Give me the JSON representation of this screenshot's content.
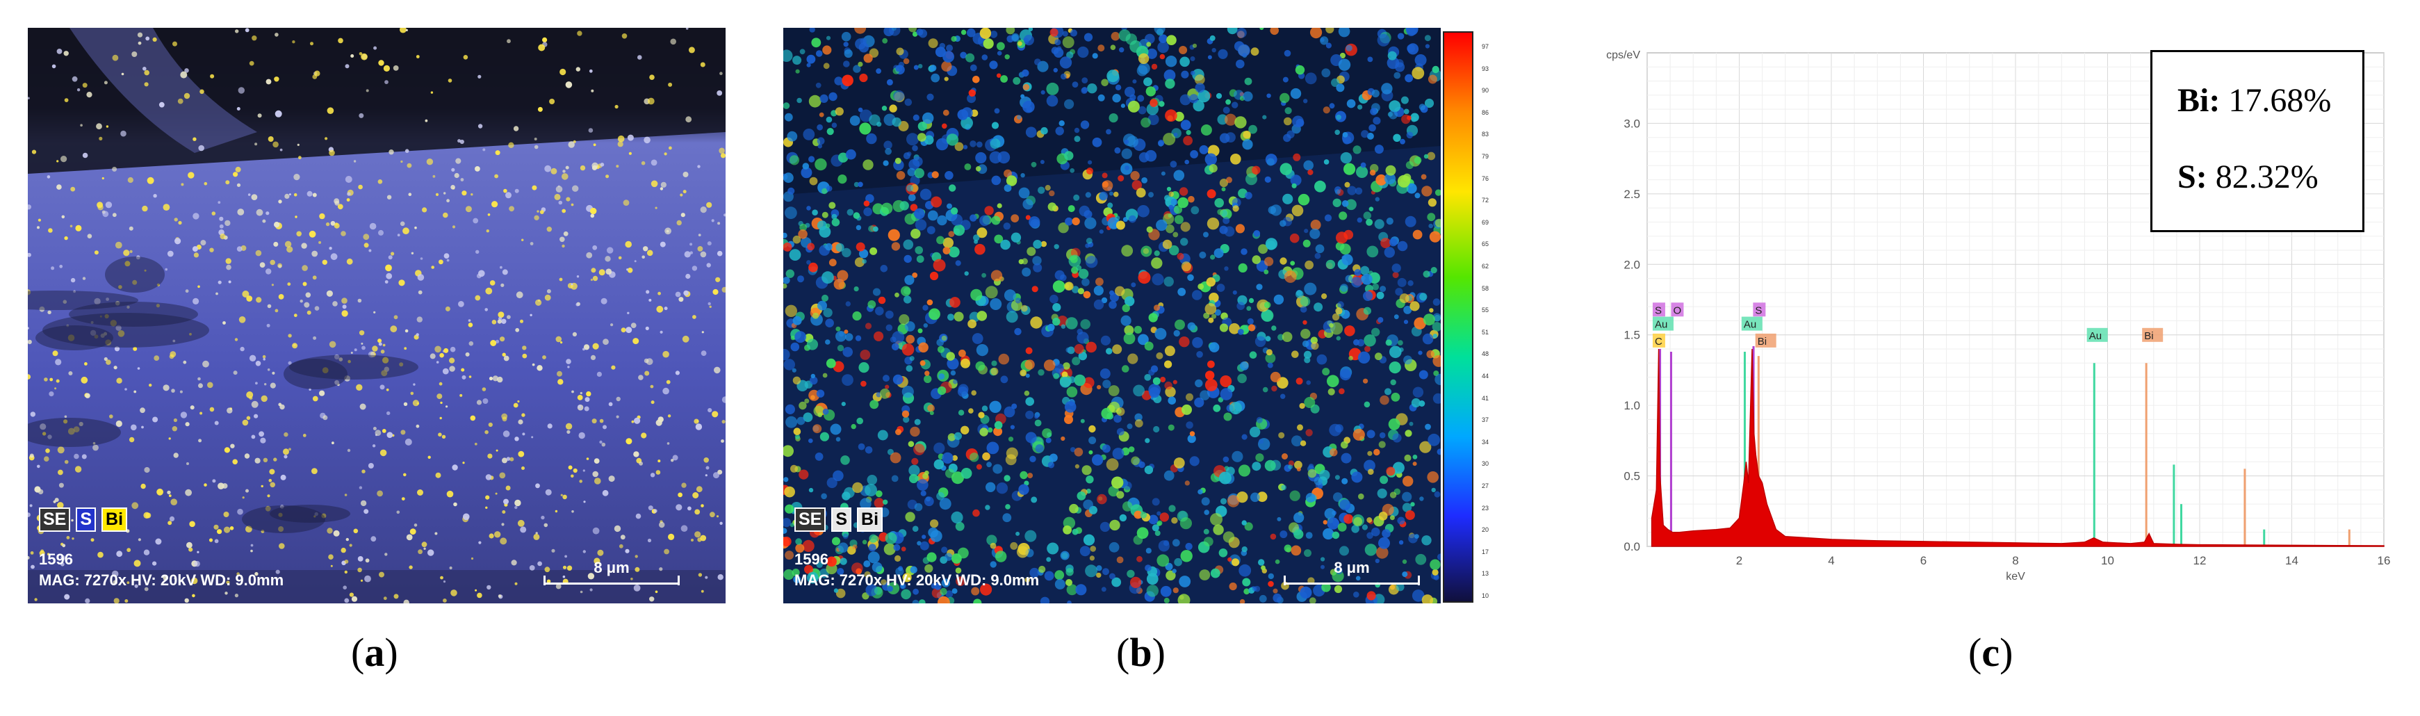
{
  "panel_a": {
    "legend": [
      "SE",
      "S",
      "Bi"
    ],
    "id": "1596",
    "info": "MAG: 7270x  HV: 20kV  WD: 9.0mm",
    "scale": "8 μm",
    "caption": "a"
  },
  "panel_b": {
    "legend": [
      "SE",
      "S",
      "Bi"
    ],
    "id": "1596",
    "info": "MAG: 7270x  HV: 20kV  WD: 9.0mm",
    "scale": "8 μm",
    "caption": "b"
  },
  "panel_c": {
    "caption": "c",
    "bi_label": "Bi:",
    "bi_value": "17.68%",
    "s_label": "S:",
    "s_value": "82.32%"
  },
  "colors": {
    "s_map": "#2233cc",
    "bi_map": "#ffe800",
    "spectrum_fill": "#e00000",
    "au_peak": "#40d8a0",
    "bi_peak": "#f0a070",
    "s_peak": "#b040d0"
  },
  "chart_data": {
    "type": "area",
    "ylabel": "cps/eV",
    "xlabel": "keV",
    "xlim": [
      0,
      16
    ],
    "ylim": [
      0,
      3.5
    ],
    "x_ticks": [
      "2",
      "4",
      "6",
      "8",
      "10",
      "12",
      "14",
      "16"
    ],
    "y_ticks": [
      "0.0",
      "0.5",
      "1.0",
      "1.5",
      "2.0",
      "2.5",
      "3.0"
    ],
    "spectrum": {
      "x": [
        0.1,
        0.2,
        0.25,
        0.28,
        0.35,
        0.45,
        0.55,
        0.7,
        1.0,
        1.5,
        1.8,
        2.0,
        2.1,
        2.15,
        2.2,
        2.28,
        2.32,
        2.36,
        2.42,
        2.5,
        2.6,
        2.8,
        3.0,
        3.5,
        4.0,
        5.0,
        6.0,
        7.0,
        8.0,
        9.0,
        9.5,
        9.7,
        9.9,
        10.5,
        10.8,
        10.9,
        11.0,
        11.5,
        12.0,
        13.0,
        14.0,
        15.0,
        16.0
      ],
      "y": [
        0.2,
        0.4,
        1.4,
        0.5,
        0.15,
        0.12,
        0.1,
        0.1,
        0.11,
        0.12,
        0.13,
        0.2,
        0.45,
        0.6,
        0.45,
        1.4,
        0.8,
        0.65,
        0.5,
        0.45,
        0.3,
        0.12,
        0.07,
        0.06,
        0.05,
        0.04,
        0.035,
        0.03,
        0.025,
        0.02,
        0.03,
        0.06,
        0.03,
        0.02,
        0.03,
        0.09,
        0.02,
        0.015,
        0.012,
        0.01,
        0.008,
        0.006,
        0.005
      ]
    },
    "element_lines": [
      {
        "x": 0.28,
        "y": 1.4,
        "element": "C"
      },
      {
        "x": 0.52,
        "y": 1.38,
        "element": "O"
      },
      {
        "x": 2.12,
        "y": 1.38,
        "element": "Au"
      },
      {
        "x": 2.31,
        "y": 1.42,
        "element": "S"
      },
      {
        "x": 2.42,
        "y": 1.35,
        "element": "Bi"
      },
      {
        "x": 9.71,
        "y": 1.3,
        "element": "Au"
      },
      {
        "x": 10.84,
        "y": 1.3,
        "element": "Bi"
      },
      {
        "x": 11.44,
        "y": 0.58,
        "element": "Au"
      },
      {
        "x": 11.6,
        "y": 0.3,
        "element": "Au"
      },
      {
        "x": 12.98,
        "y": 0.55,
        "element": "Bi"
      },
      {
        "x": 13.4,
        "y": 0.12,
        "element": "Au"
      },
      {
        "x": 15.25,
        "y": 0.12,
        "element": "Bi"
      }
    ],
    "peak_tags": [
      {
        "text": "S",
        "x": 0.12,
        "level": 1.65,
        "color": "#d070e0"
      },
      {
        "text": "O",
        "x": 0.52,
        "level": 1.65,
        "color": "#d070e0"
      },
      {
        "text": "Au",
        "x": 0.12,
        "level": 1.55,
        "color": "#60e0b0"
      },
      {
        "text": "C",
        "x": 0.12,
        "level": 1.43,
        "color": "#ffd040"
      },
      {
        "text": "S",
        "x": 2.3,
        "level": 1.65,
        "color": "#d070e0"
      },
      {
        "text": "Au",
        "x": 2.05,
        "level": 1.55,
        "color": "#60e0b0"
      },
      {
        "text": "Bi",
        "x": 2.35,
        "level": 1.43,
        "color": "#f0a070"
      },
      {
        "text": "Au",
        "x": 9.55,
        "level": 1.47,
        "color": "#60e0b0"
      },
      {
        "text": "Bi",
        "x": 10.75,
        "level": 1.47,
        "color": "#f0a070"
      }
    ]
  },
  "colorbar_ticks": [
    "97",
    "93",
    "90",
    "86",
    "83",
    "79",
    "76",
    "72",
    "69",
    "65",
    "62",
    "58",
    "55",
    "51",
    "48",
    "44",
    "41",
    "37",
    "34",
    "30",
    "27",
    "23",
    "20",
    "17",
    "13",
    "10"
  ]
}
